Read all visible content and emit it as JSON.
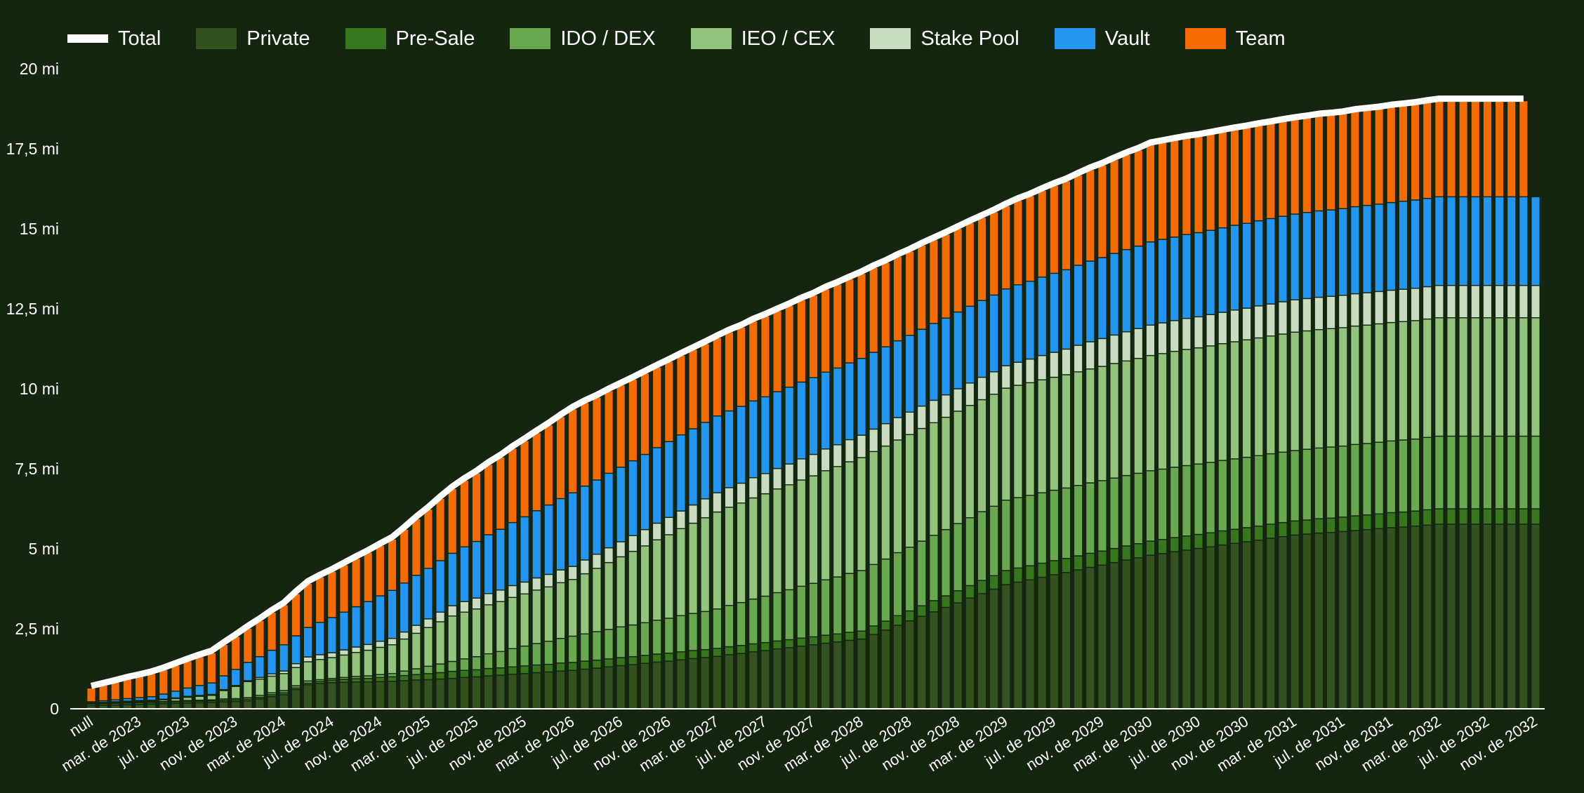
{
  "chart_data": {
    "type": "bar",
    "stacked": true,
    "background": "#142510",
    "x_tick_labels": [
      "null",
      "mar. de 2023",
      "jul. de 2023",
      "nov. de 2023",
      "mar. de 2024",
      "jul. de 2024",
      "nov. de 2024",
      "mar. de 2025",
      "jul. de 2025",
      "nov. de 2025",
      "mar. de 2026",
      "jul. de 2026",
      "nov. de 2026",
      "mar. de 2027",
      "jul. de 2027",
      "nov. de 2027",
      "mar. de 2028",
      "jul. de 2028",
      "nov. de 2028",
      "mar. de 2029",
      "jul. de 2029",
      "nov. de 2029",
      "mar. de 2030",
      "jul. de 2030",
      "nov. de 2030",
      "mar. de 2031",
      "jul. de 2031",
      "nov. de 2031",
      "mar. de 2032",
      "jul. de 2032",
      "nov. de 2032"
    ],
    "y_tick_labels": [
      "0",
      "2,5 mi",
      "5 mi",
      "7,5 mi",
      "10 mi",
      "12,5 mi",
      "15 mi",
      "17,5 mi",
      "20 mi"
    ],
    "ylim": [
      0,
      20000000
    ],
    "y_unit": "mi",
    "legend_position": "top-left",
    "grid": false,
    "total": {
      "name": "Total",
      "type": "line",
      "color": "#ffffff",
      "aggregate": "sum"
    },
    "series": [
      {
        "name": "Private",
        "color": "#33521f",
        "values": [
          0.1,
          0.11,
          0.12,
          0.13,
          0.14,
          0.15,
          0.16,
          0.17,
          0.18,
          0.19,
          0.2,
          0.22,
          0.23,
          0.25,
          0.31,
          0.38,
          0.44,
          0.6,
          0.75,
          0.79,
          0.82,
          0.83,
          0.84,
          0.84,
          0.85,
          0.86,
          0.88,
          0.9,
          0.91,
          0.93,
          0.95,
          0.98,
          1.0,
          1.03,
          1.05,
          1.08,
          1.1,
          1.13,
          1.15,
          1.18,
          1.2,
          1.24,
          1.27,
          1.31,
          1.35,
          1.38,
          1.42,
          1.46,
          1.49,
          1.53,
          1.57,
          1.6,
          1.64,
          1.69,
          1.73,
          1.78,
          1.82,
          1.87,
          1.91,
          1.96,
          2.0,
          2.05,
          2.09,
          2.14,
          2.18,
          2.32,
          2.46,
          2.61,
          2.75,
          2.89,
          3.03,
          3.17,
          3.31,
          3.46,
          3.6,
          3.74,
          3.88,
          3.96,
          4.03,
          4.11,
          4.19,
          4.26,
          4.34,
          4.42,
          4.49,
          4.57,
          4.65,
          4.72,
          4.8,
          4.85,
          4.91,
          4.96,
          5.01,
          5.06,
          5.12,
          5.17,
          5.22,
          5.27,
          5.33,
          5.38,
          5.43,
          5.46,
          5.49,
          5.51,
          5.54,
          5.57,
          5.6,
          5.63,
          5.66,
          5.68,
          5.71,
          5.74,
          5.77,
          5.77,
          5.77,
          5.77,
          5.77,
          5.77,
          5.77,
          5.77,
          5.77
        ]
      },
      {
        "name": "Pre-Sale",
        "color": "#38761d",
        "values": [
          0.05,
          0.05,
          0.05,
          0.05,
          0.05,
          0.05,
          0.05,
          0.05,
          0.05,
          0.05,
          0.05,
          0.05,
          0.05,
          0.05,
          0.05,
          0.06,
          0.06,
          0.05,
          0.05,
          0.06,
          0.08,
          0.09,
          0.1,
          0.11,
          0.13,
          0.14,
          0.16,
          0.17,
          0.19,
          0.2,
          0.22,
          0.22,
          0.22,
          0.23,
          0.23,
          0.23,
          0.24,
          0.24,
          0.24,
          0.25,
          0.25,
          0.25,
          0.25,
          0.25,
          0.25,
          0.25,
          0.25,
          0.25,
          0.25,
          0.25,
          0.25,
          0.25,
          0.25,
          0.25,
          0.25,
          0.25,
          0.25,
          0.25,
          0.25,
          0.25,
          0.25,
          0.25,
          0.25,
          0.25,
          0.25,
          0.27,
          0.28,
          0.3,
          0.31,
          0.33,
          0.35,
          0.36,
          0.38,
          0.39,
          0.41,
          0.42,
          0.44,
          0.44,
          0.44,
          0.44,
          0.44,
          0.44,
          0.44,
          0.44,
          0.44,
          0.44,
          0.44,
          0.44,
          0.44,
          0.44,
          0.44,
          0.44,
          0.44,
          0.44,
          0.44,
          0.44,
          0.44,
          0.44,
          0.44,
          0.44,
          0.44,
          0.44,
          0.45,
          0.45,
          0.45,
          0.46,
          0.46,
          0.46,
          0.47,
          0.47,
          0.47,
          0.48,
          0.48,
          0.48,
          0.48,
          0.48,
          0.48,
          0.48,
          0.48,
          0.48,
          0.48
        ]
      },
      {
        "name": "IDO / DEX",
        "color": "#6aa84f",
        "values": [
          0.02,
          0.02,
          0.02,
          0.02,
          0.02,
          0.02,
          0.02,
          0.02,
          0.03,
          0.03,
          0.03,
          0.04,
          0.04,
          0.05,
          0.06,
          0.06,
          0.07,
          0.07,
          0.07,
          0.06,
          0.05,
          0.06,
          0.07,
          0.08,
          0.09,
          0.1,
          0.14,
          0.18,
          0.23,
          0.27,
          0.31,
          0.36,
          0.41,
          0.46,
          0.51,
          0.57,
          0.62,
          0.67,
          0.72,
          0.77,
          0.82,
          0.85,
          0.89,
          0.92,
          0.96,
          0.99,
          1.02,
          1.06,
          1.09,
          1.13,
          1.16,
          1.19,
          1.23,
          1.29,
          1.34,
          1.4,
          1.45,
          1.51,
          1.56,
          1.62,
          1.67,
          1.73,
          1.78,
          1.84,
          1.89,
          1.92,
          1.94,
          1.97,
          1.99,
          2.02,
          2.04,
          2.07,
          2.1,
          2.12,
          2.15,
          2.17,
          2.2,
          2.2,
          2.2,
          2.2,
          2.2,
          2.2,
          2.2,
          2.2,
          2.2,
          2.2,
          2.2,
          2.2,
          2.2,
          2.2,
          2.2,
          2.2,
          2.2,
          2.2,
          2.2,
          2.2,
          2.2,
          2.2,
          2.2,
          2.2,
          2.2,
          2.21,
          2.21,
          2.22,
          2.22,
          2.23,
          2.23,
          2.24,
          2.24,
          2.25,
          2.25,
          2.26,
          2.27,
          2.27,
          2.27,
          2.27,
          2.27,
          2.27,
          2.27,
          2.27,
          2.27
        ]
      },
      {
        "name": "IEO / CEX",
        "color": "#93c47d",
        "values": [
          0.01,
          0.01,
          0.02,
          0.02,
          0.03,
          0.03,
          0.05,
          0.08,
          0.1,
          0.12,
          0.14,
          0.26,
          0.38,
          0.5,
          0.51,
          0.52,
          0.53,
          0.57,
          0.6,
          0.63,
          0.65,
          0.7,
          0.75,
          0.8,
          0.85,
          0.9,
          1.0,
          1.11,
          1.21,
          1.32,
          1.42,
          1.46,
          1.49,
          1.53,
          1.56,
          1.6,
          1.63,
          1.67,
          1.7,
          1.74,
          1.77,
          1.88,
          1.98,
          2.09,
          2.19,
          2.3,
          2.4,
          2.51,
          2.61,
          2.72,
          2.82,
          2.93,
          3.03,
          3.07,
          3.11,
          3.16,
          3.2,
          3.24,
          3.28,
          3.32,
          3.36,
          3.41,
          3.45,
          3.49,
          3.53,
          3.53,
          3.53,
          3.52,
          3.52,
          3.52,
          3.52,
          3.51,
          3.51,
          3.51,
          3.5,
          3.5,
          3.5,
          3.51,
          3.52,
          3.53,
          3.53,
          3.54,
          3.55,
          3.56,
          3.57,
          3.58,
          3.58,
          3.59,
          3.6,
          3.61,
          3.62,
          3.63,
          3.63,
          3.64,
          3.65,
          3.66,
          3.67,
          3.68,
          3.68,
          3.69,
          3.7,
          3.7,
          3.7,
          3.7,
          3.7,
          3.7,
          3.7,
          3.7,
          3.7,
          3.7,
          3.7,
          3.7,
          3.7,
          3.7,
          3.7,
          3.7,
          3.7,
          3.7,
          3.7,
          3.7,
          3.7
        ]
      },
      {
        "name": "Stake Pool",
        "color": "#c8dcbf",
        "values": [
          0.01,
          0.01,
          0.01,
          0.02,
          0.02,
          0.02,
          0.02,
          0.02,
          0.03,
          0.03,
          0.03,
          0.03,
          0.03,
          0.03,
          0.05,
          0.07,
          0.08,
          0.12,
          0.15,
          0.15,
          0.15,
          0.16,
          0.17,
          0.18,
          0.19,
          0.2,
          0.22,
          0.25,
          0.27,
          0.3,
          0.32,
          0.33,
          0.34,
          0.35,
          0.36,
          0.37,
          0.37,
          0.38,
          0.39,
          0.4,
          0.41,
          0.43,
          0.44,
          0.46,
          0.47,
          0.49,
          0.51,
          0.52,
          0.54,
          0.55,
          0.57,
          0.59,
          0.6,
          0.61,
          0.62,
          0.63,
          0.63,
          0.64,
          0.65,
          0.66,
          0.67,
          0.68,
          0.68,
          0.69,
          0.7,
          0.7,
          0.7,
          0.7,
          0.7,
          0.7,
          0.7,
          0.7,
          0.7,
          0.7,
          0.7,
          0.7,
          0.7,
          0.72,
          0.74,
          0.76,
          0.78,
          0.8,
          0.83,
          0.85,
          0.87,
          0.89,
          0.91,
          0.93,
          0.95,
          0.96,
          0.96,
          0.97,
          0.97,
          0.98,
          0.98,
          0.99,
          0.99,
          1.0,
          1.0,
          1.01,
          1.01,
          1.01,
          1.01,
          1.01,
          1.01,
          1.01,
          1.01,
          1.01,
          1.01,
          1.01,
          1.01,
          1.01,
          1.01,
          1.01,
          1.01,
          1.01,
          1.01,
          1.01,
          1.01,
          1.01,
          1.01,
          1.01
        ]
      },
      {
        "name": "Vault",
        "color": "#2196f3",
        "values": [
          0.03,
          0.05,
          0.06,
          0.08,
          0.09,
          0.11,
          0.16,
          0.21,
          0.26,
          0.31,
          0.36,
          0.43,
          0.5,
          0.57,
          0.65,
          0.74,
          0.82,
          0.87,
          0.92,
          1.01,
          1.1,
          1.18,
          1.26,
          1.34,
          1.42,
          1.5,
          1.53,
          1.56,
          1.58,
          1.61,
          1.64,
          1.71,
          1.77,
          1.84,
          1.9,
          1.97,
          2.04,
          2.1,
          2.17,
          2.23,
          2.3,
          2.31,
          2.32,
          2.33,
          2.33,
          2.34,
          2.35,
          2.36,
          2.37,
          2.38,
          2.38,
          2.39,
          2.4,
          2.4,
          2.4,
          2.4,
          2.4,
          2.4,
          2.4,
          2.4,
          2.4,
          2.4,
          2.4,
          2.4,
          2.4,
          2.4,
          2.4,
          2.4,
          2.4,
          2.4,
          2.4,
          2.4,
          2.4,
          2.4,
          2.4,
          2.4,
          2.4,
          2.42,
          2.43,
          2.45,
          2.47,
          2.48,
          2.5,
          2.52,
          2.53,
          2.55,
          2.57,
          2.58,
          2.6,
          2.61,
          2.61,
          2.62,
          2.63,
          2.63,
          2.64,
          2.65,
          2.65,
          2.66,
          2.67,
          2.67,
          2.68,
          2.69,
          2.7,
          2.7,
          2.71,
          2.72,
          2.73,
          2.73,
          2.74,
          2.75,
          2.76,
          2.76,
          2.77,
          2.77,
          2.77,
          2.77,
          2.77,
          2.77,
          2.77,
          2.77,
          2.77
        ]
      },
      {
        "name": "Team",
        "color": "#f56b00",
        "values": [
          0.43,
          0.49,
          0.55,
          0.61,
          0.66,
          0.72,
          0.76,
          0.81,
          0.85,
          0.9,
          0.94,
          0.98,
          1.03,
          1.07,
          1.13,
          1.19,
          1.25,
          1.32,
          1.38,
          1.42,
          1.45,
          1.48,
          1.51,
          1.54,
          1.57,
          1.6,
          1.68,
          1.77,
          1.85,
          1.94,
          2.02,
          2.08,
          2.14,
          2.2,
          2.26,
          2.32,
          2.38,
          2.44,
          2.5,
          2.56,
          2.62,
          2.61,
          2.59,
          2.58,
          2.57,
          2.55,
          2.54,
          2.52,
          2.51,
          2.49,
          2.48,
          2.46,
          2.45,
          2.47,
          2.48,
          2.5,
          2.52,
          2.53,
          2.55,
          2.57,
          2.58,
          2.6,
          2.62,
          2.63,
          2.65,
          2.65,
          2.64,
          2.64,
          2.63,
          2.63,
          2.62,
          2.62,
          2.61,
          2.61,
          2.6,
          2.6,
          2.6,
          2.64,
          2.67,
          2.71,
          2.75,
          2.78,
          2.82,
          2.86,
          2.89,
          2.93,
          2.97,
          3.0,
          3.04,
          3.03,
          3.03,
          3.02,
          3.01,
          3.01,
          3.0,
          2.99,
          2.99,
          2.98,
          2.97,
          2.97,
          2.96,
          2.96,
          2.97,
          2.97,
          2.97,
          2.98,
          2.98,
          2.98,
          2.99,
          2.99,
          2.99,
          3.0,
          3.0,
          3.0,
          3.0,
          3.0,
          3.0,
          3.0,
          3.0,
          3.0
        ]
      }
    ]
  }
}
